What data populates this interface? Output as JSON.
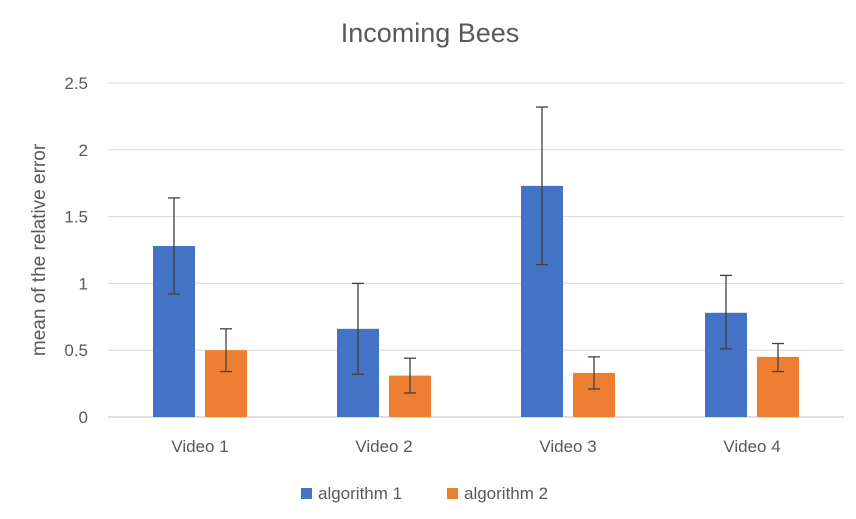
{
  "chart_data": {
    "type": "bar",
    "title": "Incoming Bees",
    "xlabel": "",
    "ylabel": "mean of the relative error",
    "categories": [
      "Video 1",
      "Video 2",
      "Video 3",
      "Video 4"
    ],
    "ylim": [
      0,
      2.5
    ],
    "yticks": [
      0,
      0.5,
      1,
      1.5,
      2,
      2.5
    ],
    "ytick_labels": [
      "0",
      "0.5",
      "1",
      "1.5",
      "2",
      "2.5"
    ],
    "grid": true,
    "legend_position": "bottom",
    "series": [
      {
        "name": "algorithm 1",
        "color": "#4472C4",
        "values": [
          1.28,
          0.66,
          1.73,
          0.78
        ],
        "error_low": [
          0.92,
          0.32,
          1.14,
          0.51
        ],
        "error_high": [
          1.64,
          1.0,
          2.32,
          1.06
        ]
      },
      {
        "name": "algorithm 2",
        "color": "#ED7D31",
        "values": [
          0.5,
          0.31,
          0.33,
          0.45
        ],
        "error_low": [
          0.34,
          0.18,
          0.21,
          0.34
        ],
        "error_high": [
          0.66,
          0.44,
          0.45,
          0.55
        ]
      }
    ]
  }
}
